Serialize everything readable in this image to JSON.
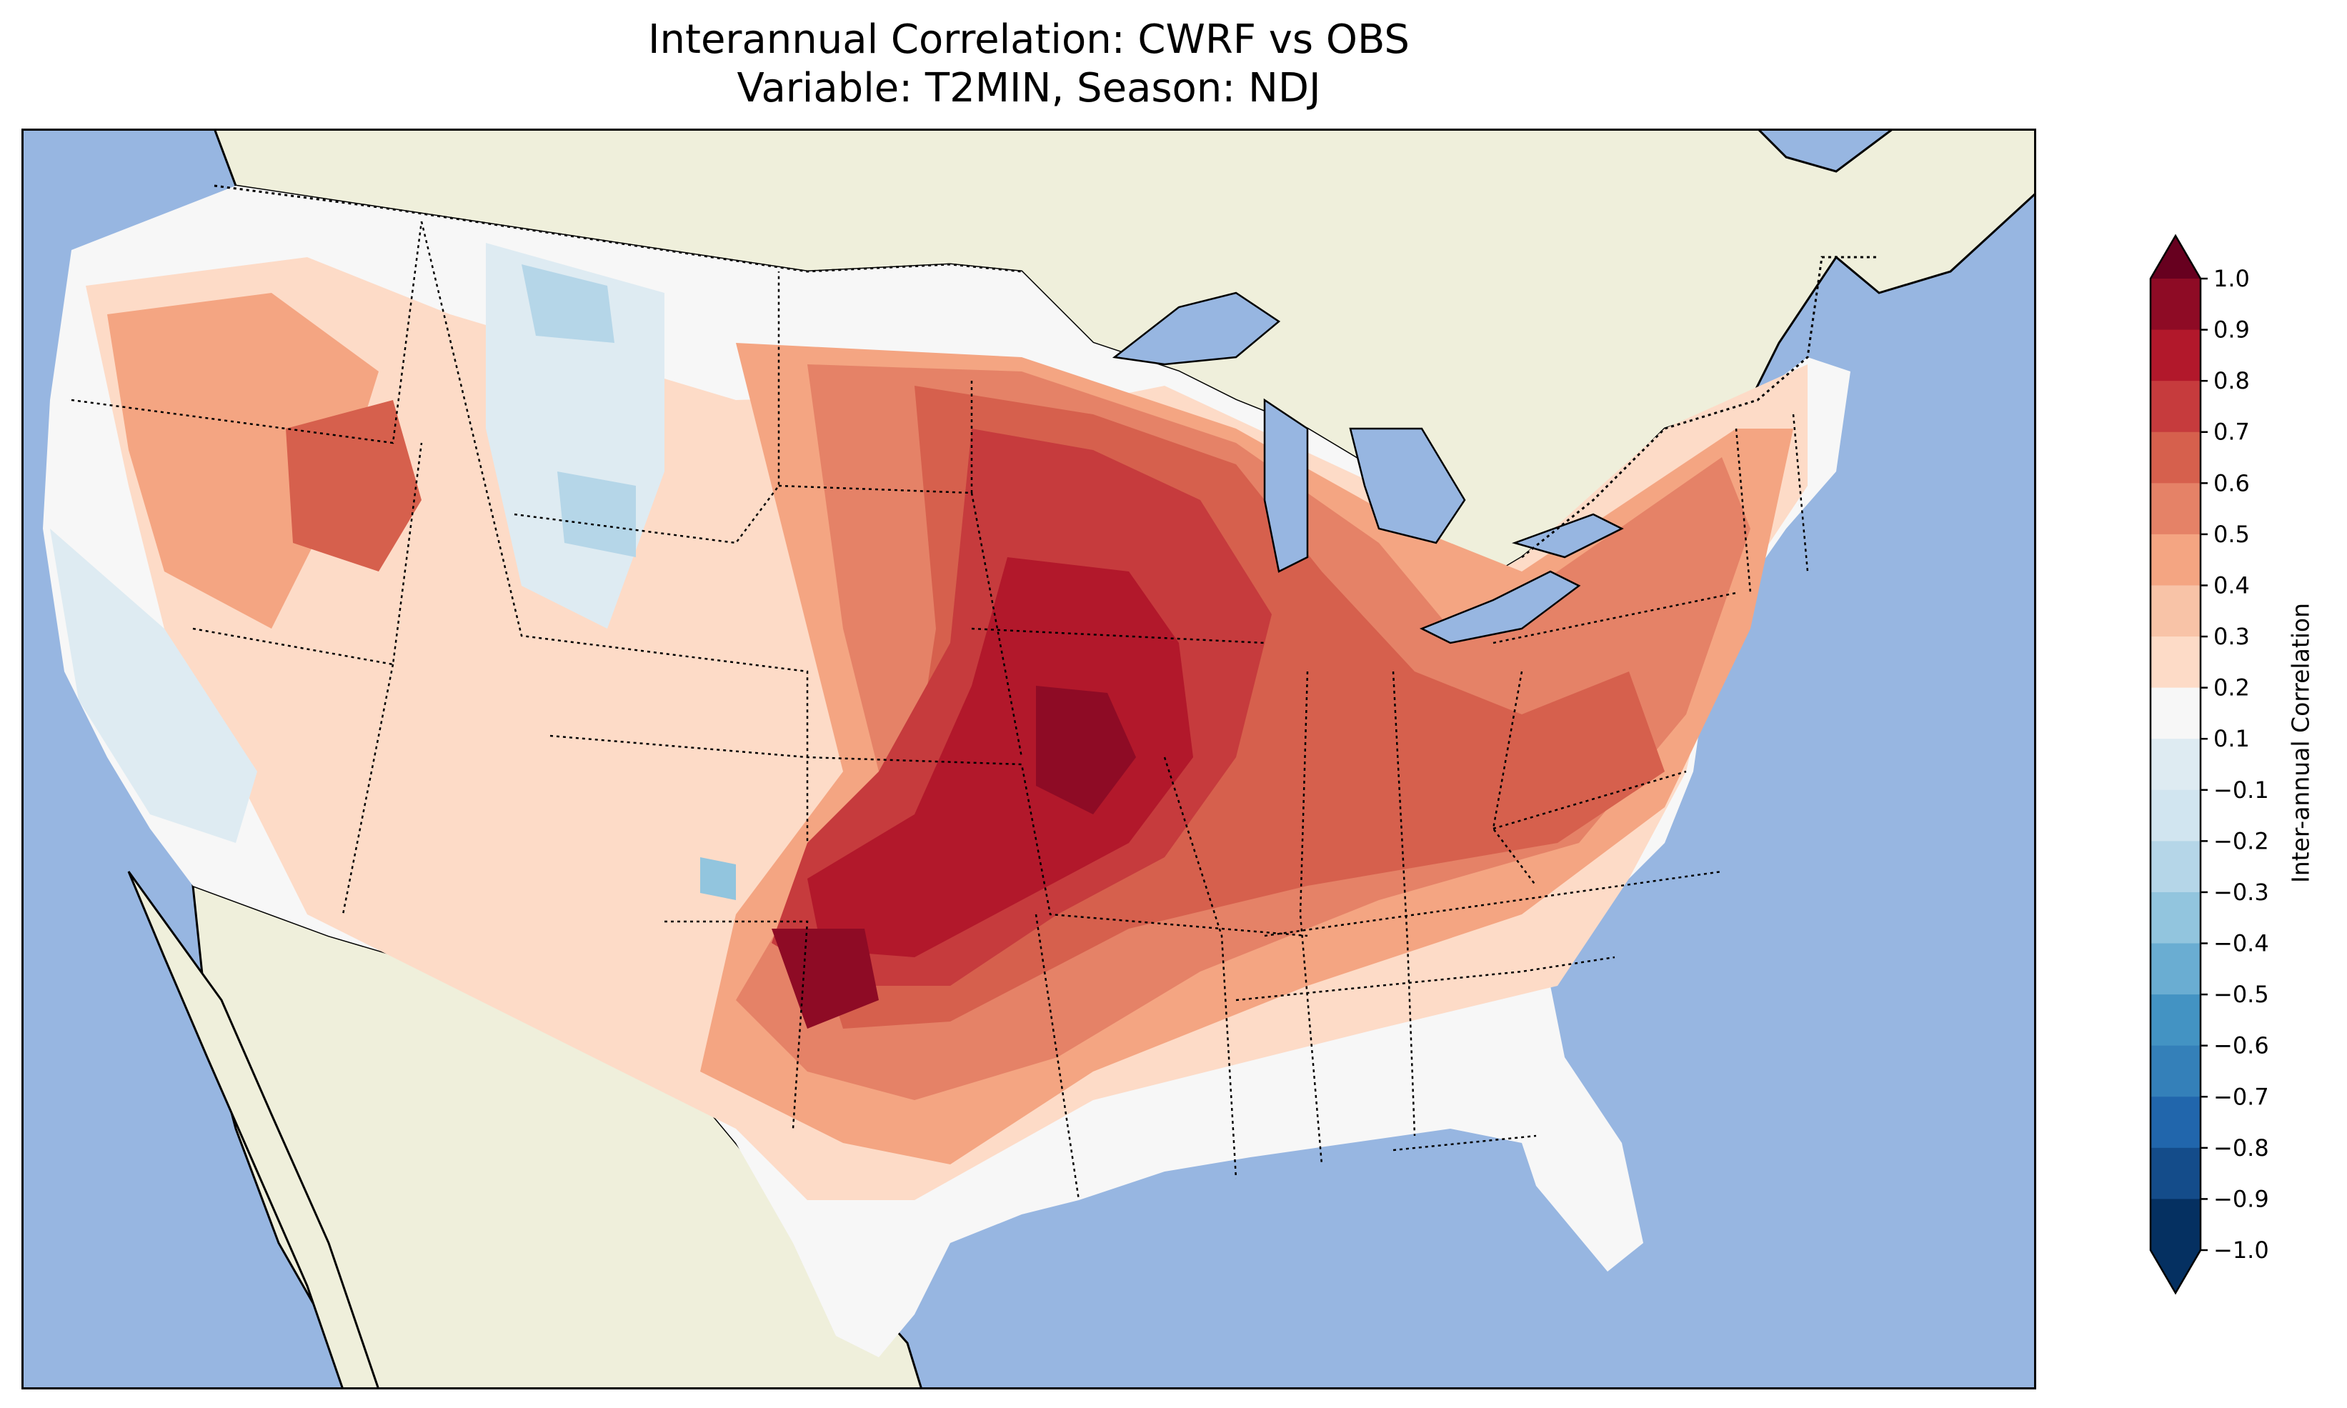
{
  "title": {
    "line1": "Interannual Correlation: CWRF vs OBS",
    "line2": "Variable: T2MIN, Season: NDJ"
  },
  "colorbar": {
    "label": "Inter-annual Correlation",
    "ticks": [
      "1.0",
      "0.9",
      "0.8",
      "0.7",
      "0.6",
      "0.5",
      "0.4",
      "0.3",
      "0.2",
      "0.1",
      "−0.1",
      "−0.2",
      "−0.3",
      "−0.4",
      "−0.5",
      "−0.6",
      "−0.7",
      "−0.8",
      "−0.9",
      "−1.0"
    ],
    "colors": [
      "#67001f",
      "#8e0b25",
      "#b2182b",
      "#c63b3d",
      "#d6604d",
      "#e58267",
      "#f4a582",
      "#f8c3a7",
      "#fddbc7",
      "#f7f7f7",
      "#deebf2",
      "#d1e5f0",
      "#b5d6e8",
      "#92c5de",
      "#6aadd2",
      "#4393c3",
      "#3480b9",
      "#2166ac",
      "#144c8a",
      "#053061"
    ]
  },
  "map_colors": {
    "ocean": "#97b6e1",
    "land": "#efefdb",
    "lakes": "#97b6e1"
  }
}
